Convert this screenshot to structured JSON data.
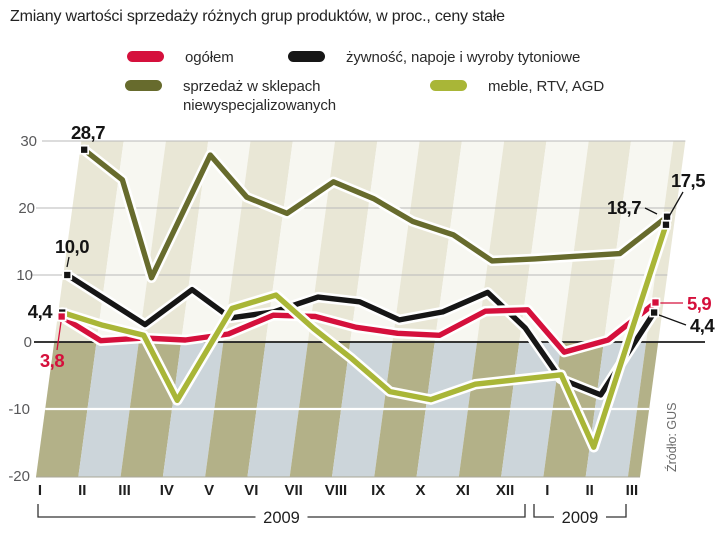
{
  "title": "Zmiany wartości sprzedaży różnych grup produktów, w proc., ceny stałe",
  "source": "Źródło: GUS",
  "chart_data": {
    "type": "line",
    "title": "Zmiany wartości sprzedaży różnych grup produktów, w proc., ceny stałe",
    "unit": "proc.",
    "grid": true,
    "legend_position": "top",
    "ylim": [
      -20,
      30
    ],
    "y_ticks": [
      30,
      20,
      10,
      0,
      -10,
      -20
    ],
    "x_categories": [
      "I",
      "II",
      "III",
      "IV",
      "V",
      "VI",
      "VII",
      "VIII",
      "IX",
      "X",
      "XI",
      "XII",
      "I",
      "II",
      "III"
    ],
    "x_groups": [
      {
        "label": "2009",
        "from": 0,
        "to": 11
      },
      {
        "label": "2009",
        "from": 12,
        "to": 14
      }
    ],
    "series": [
      {
        "id": "ogolem",
        "name": "ogółem",
        "color": "#d5103c",
        "values": [
          3.8,
          0.2,
          0.6,
          0.3,
          1.2,
          4.0,
          3.8,
          2.2,
          1.3,
          1.0,
          4.6,
          4.8,
          -1.5,
          0.3,
          5.9
        ]
      },
      {
        "id": "zywnosc",
        "name": "żywność, napoje i wyroby tytoniowe",
        "color": "#161616",
        "values": [
          10.0,
          6.3,
          2.6,
          7.8,
          3.6,
          4.5,
          6.7,
          6.0,
          3.3,
          4.5,
          7.4,
          2.1,
          -5.5,
          -7.9,
          4.4
        ]
      },
      {
        "id": "sklepy",
        "name": "sprzedaż w sklepach niewyspecjalizowanych",
        "color": "#676b2d",
        "values": [
          28.7,
          24.2,
          9.6,
          27.9,
          21.6,
          19.2,
          23.9,
          21.4,
          18.0,
          16.0,
          12.1,
          12.4,
          12.8,
          13.2,
          18.7
        ]
      },
      {
        "id": "meble",
        "name": "meble, RTV, AGD",
        "color": "#a9b637",
        "values": [
          4.4,
          2.5,
          1.0,
          -8.7,
          5.0,
          7.0,
          2.0,
          -2.5,
          -7.4,
          -8.6,
          -6.3,
          -5.6,
          -4.9,
          -15.7,
          17.5
        ]
      }
    ],
    "annotations": [
      {
        "id": "start-sklepy",
        "text": "28,7",
        "series": "sklepy",
        "month": 0,
        "color": "#141414"
      },
      {
        "id": "start-zywnosc",
        "text": "10,0",
        "series": "zywnosc",
        "month": 0,
        "color": "#141414"
      },
      {
        "id": "start-meble",
        "text": "4,4",
        "series": "meble",
        "month": 0,
        "color": "#141414"
      },
      {
        "id": "start-ogolem",
        "text": "3,8",
        "series": "ogolem",
        "month": 0,
        "color": "#d5103c"
      },
      {
        "id": "end-sklepy",
        "text": "18,7",
        "series": "sklepy",
        "month": 14,
        "color": "#141414"
      },
      {
        "id": "end-meble",
        "text": "17,5",
        "series": "meble",
        "month": 14,
        "color": "#141414"
      },
      {
        "id": "end-ogolem",
        "text": "5,9",
        "series": "ogolem",
        "month": 14,
        "color": "#d5103c"
      },
      {
        "id": "end-zywnosc",
        "text": "4,4",
        "series": "zywnosc",
        "month": 14,
        "color": "#141414"
      }
    ],
    "background_stripe_colors": {
      "below_zero": [
        "#b3b188",
        "#ccd5da"
      ],
      "above_zero": [
        "#e9e7d6",
        "#f7f7f1"
      ]
    }
  }
}
